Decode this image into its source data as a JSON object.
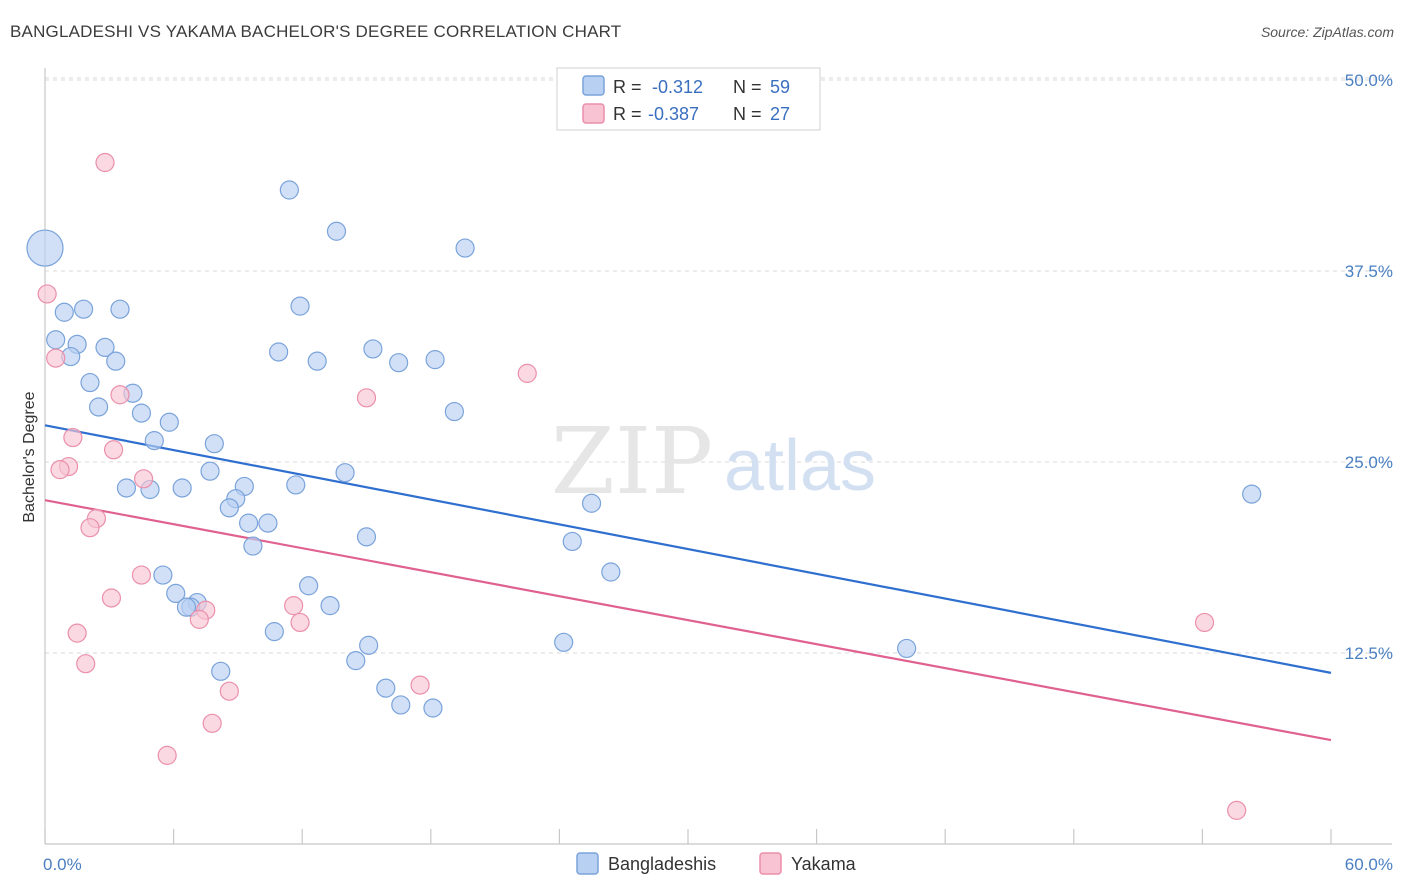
{
  "title": "BANGLADESHI VS YAKAMA BACHELOR'S DEGREE CORRELATION CHART",
  "source": "Source: ZipAtlas.com",
  "watermark": {
    "zip": "ZIP",
    "atlas": "atlas"
  },
  "legend_top": [
    {
      "r_label": "R = ",
      "r_value": "-0.312",
      "n_label": "N = ",
      "n_value": "59"
    },
    {
      "r_label": "R = ",
      "r_value": "-0.387",
      "n_label": "N = ",
      "n_value": "27"
    }
  ],
  "colors": {
    "bangladeshi_fill": "#b8d0f2",
    "bangladeshi_stroke": "#7aa3da",
    "bangladeshi_line": "#2f6fcf",
    "yakama_fill": "#f8c4d4",
    "yakama_stroke": "#eb8fab",
    "yakama_line": "#e0618f",
    "grid": "#d9d9d9",
    "tick_label": "#4a7fc1"
  },
  "chart_data": {
    "type": "scatter",
    "title": "BANGLADESHI VS YAKAMA BACHELOR'S DEGREE CORRELATION CHART",
    "xlabel": "",
    "ylabel": "Bachelor's Degree",
    "xlim": [
      0,
      60
    ],
    "ylim": [
      0,
      52
    ],
    "x_tick_labels": [
      "0.0%",
      "60.0%"
    ],
    "y_ticks": [
      12.5,
      25.0,
      37.5,
      50.0
    ],
    "y_tick_labels": [
      "12.5%",
      "25.0%",
      "37.5%",
      "50.0%"
    ],
    "grid": true,
    "series": [
      {
        "name": "Bangladeshis",
        "r": -0.312,
        "n": 59,
        "trend": {
          "x": [
            0,
            60
          ],
          "y": [
            27.4,
            11.2
          ]
        },
        "points": [
          {
            "x": 0.0,
            "y": 39.0,
            "big": true
          },
          {
            "x": 11.4,
            "y": 42.8
          },
          {
            "x": 13.6,
            "y": 40.1
          },
          {
            "x": 19.6,
            "y": 39.0
          },
          {
            "x": 0.9,
            "y": 34.8
          },
          {
            "x": 1.8,
            "y": 35.0
          },
          {
            "x": 3.5,
            "y": 35.0
          },
          {
            "x": 11.9,
            "y": 35.2
          },
          {
            "x": 0.5,
            "y": 33.0
          },
          {
            "x": 1.5,
            "y": 32.7
          },
          {
            "x": 2.8,
            "y": 32.5
          },
          {
            "x": 1.2,
            "y": 31.9
          },
          {
            "x": 3.3,
            "y": 31.6
          },
          {
            "x": 10.9,
            "y": 32.2
          },
          {
            "x": 12.7,
            "y": 31.6
          },
          {
            "x": 15.3,
            "y": 32.4
          },
          {
            "x": 16.5,
            "y": 31.5
          },
          {
            "x": 18.2,
            "y": 31.7
          },
          {
            "x": 2.1,
            "y": 30.2
          },
          {
            "x": 4.1,
            "y": 29.5
          },
          {
            "x": 2.5,
            "y": 28.6
          },
          {
            "x": 4.5,
            "y": 28.2
          },
          {
            "x": 19.1,
            "y": 28.3
          },
          {
            "x": 5.8,
            "y": 27.6
          },
          {
            "x": 5.1,
            "y": 26.4
          },
          {
            "x": 7.9,
            "y": 26.2
          },
          {
            "x": 7.7,
            "y": 24.4
          },
          {
            "x": 14.0,
            "y": 24.3
          },
          {
            "x": 3.8,
            "y": 23.3
          },
          {
            "x": 6.4,
            "y": 23.3
          },
          {
            "x": 4.9,
            "y": 23.2
          },
          {
            "x": 9.3,
            "y": 23.4
          },
          {
            "x": 11.7,
            "y": 23.5
          },
          {
            "x": 8.9,
            "y": 22.6
          },
          {
            "x": 8.6,
            "y": 22.0
          },
          {
            "x": 25.5,
            "y": 22.3
          },
          {
            "x": 56.3,
            "y": 22.9
          },
          {
            "x": 9.5,
            "y": 21.0
          },
          {
            "x": 10.4,
            "y": 21.0
          },
          {
            "x": 15.0,
            "y": 20.1
          },
          {
            "x": 9.7,
            "y": 19.5
          },
          {
            "x": 24.6,
            "y": 19.8
          },
          {
            "x": 26.4,
            "y": 17.8
          },
          {
            "x": 5.5,
            "y": 17.6
          },
          {
            "x": 12.3,
            "y": 16.9
          },
          {
            "x": 6.1,
            "y": 16.4
          },
          {
            "x": 7.1,
            "y": 15.8
          },
          {
            "x": 6.8,
            "y": 15.5
          },
          {
            "x": 6.6,
            "y": 15.5
          },
          {
            "x": 13.3,
            "y": 15.6
          },
          {
            "x": 10.7,
            "y": 13.9
          },
          {
            "x": 15.1,
            "y": 13.0
          },
          {
            "x": 24.2,
            "y": 13.2
          },
          {
            "x": 40.2,
            "y": 12.8
          },
          {
            "x": 14.5,
            "y": 12.0
          },
          {
            "x": 8.2,
            "y": 11.3
          },
          {
            "x": 15.9,
            "y": 10.2
          },
          {
            "x": 16.6,
            "y": 9.1
          },
          {
            "x": 18.1,
            "y": 8.9
          }
        ]
      },
      {
        "name": "Yakama",
        "r": -0.387,
        "n": 27,
        "trend": {
          "x": [
            0,
            60
          ],
          "y": [
            22.5,
            6.8
          ]
        },
        "points": [
          {
            "x": 2.8,
            "y": 44.6
          },
          {
            "x": 0.1,
            "y": 36.0
          },
          {
            "x": 0.5,
            "y": 31.8
          },
          {
            "x": 22.5,
            "y": 30.8
          },
          {
            "x": 3.5,
            "y": 29.4
          },
          {
            "x": 15.0,
            "y": 29.2
          },
          {
            "x": 1.3,
            "y": 26.6
          },
          {
            "x": 3.2,
            "y": 25.8
          },
          {
            "x": 1.1,
            "y": 24.7
          },
          {
            "x": 0.7,
            "y": 24.5
          },
          {
            "x": 4.6,
            "y": 23.9
          },
          {
            "x": 2.4,
            "y": 21.3
          },
          {
            "x": 2.1,
            "y": 20.7
          },
          {
            "x": 4.5,
            "y": 17.6
          },
          {
            "x": 3.1,
            "y": 16.1
          },
          {
            "x": 11.6,
            "y": 15.6
          },
          {
            "x": 7.5,
            "y": 15.3
          },
          {
            "x": 7.2,
            "y": 14.7
          },
          {
            "x": 11.9,
            "y": 14.5
          },
          {
            "x": 54.1,
            "y": 14.5
          },
          {
            "x": 1.5,
            "y": 13.8
          },
          {
            "x": 1.9,
            "y": 11.8
          },
          {
            "x": 17.5,
            "y": 10.4
          },
          {
            "x": 8.6,
            "y": 10.0
          },
          {
            "x": 7.8,
            "y": 7.9
          },
          {
            "x": 5.7,
            "y": 5.8
          },
          {
            "x": 55.6,
            "y": 2.2
          }
        ]
      }
    ]
  }
}
